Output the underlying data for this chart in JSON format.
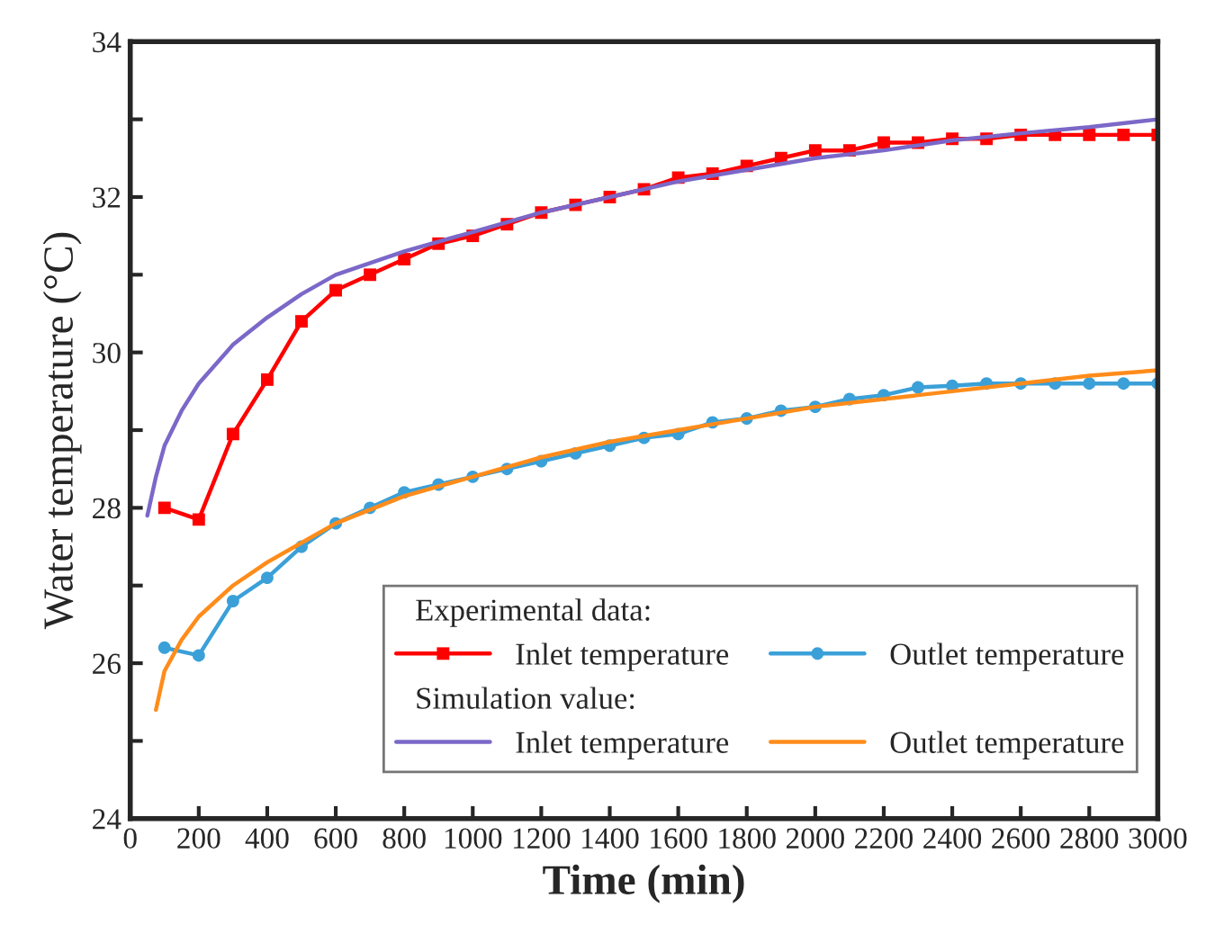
{
  "chart_data": {
    "type": "line",
    "xlabel": "Time (min)",
    "ylabel": "Water temperature (°C)",
    "xlim": [
      0,
      3000
    ],
    "xticks": [
      0,
      200,
      400,
      600,
      800,
      1000,
      1200,
      1400,
      1600,
      1800,
      2000,
      2200,
      2400,
      2600,
      2800,
      3000
    ],
    "ylim": [
      24,
      34
    ],
    "yticks": [
      24,
      {
        "value": 25,
        "label": null
      },
      26,
      {
        "value": 27,
        "label": null
      },
      28,
      {
        "value": 29,
        "label": null
      },
      30,
      {
        "value": 31,
        "label": null
      },
      32,
      {
        "value": 33,
        "label": null
      },
      34
    ],
    "grid": false,
    "legend": "bottom right",
    "line_style": "solid",
    "annotations": [
      "Experimental data:",
      "Simulation value:"
    ],
    "series": [
      {
        "name": "Inlet temperature",
        "color": "#ff0000",
        "marker": "square",
        "x": [
          100,
          200,
          300,
          400,
          500,
          600,
          700,
          800,
          900,
          1000,
          1100,
          1200,
          1300,
          1400,
          1500,
          1600,
          1700,
          1800,
          1900,
          2000,
          2100,
          2200,
          2300,
          2400,
          2500,
          2600,
          2700,
          2800,
          2900,
          3000
        ],
        "values": [
          28.0,
          27.85,
          28.95,
          29.65,
          30.4,
          30.8,
          31.0,
          31.2,
          31.4,
          31.5,
          31.65,
          31.8,
          31.9,
          32.0,
          32.1,
          32.25,
          32.3,
          32.4,
          32.5,
          32.6,
          32.6,
          32.7,
          32.7,
          32.75,
          32.75,
          32.8,
          32.8,
          32.8,
          32.8,
          32.8
        ]
      },
      {
        "name": "Outlet temperature",
        "color": "#3ba0d8",
        "marker": "circle",
        "x": [
          100,
          200,
          300,
          400,
          500,
          600,
          700,
          800,
          900,
          1000,
          1100,
          1200,
          1300,
          1400,
          1500,
          1600,
          1700,
          1800,
          1900,
          2000,
          2100,
          2200,
          2300,
          2400,
          2500,
          2600,
          2700,
          2800,
          2900,
          3000
        ],
        "values": [
          26.2,
          26.1,
          26.8,
          27.1,
          27.5,
          27.8,
          28.0,
          28.2,
          28.3,
          28.4,
          28.5,
          28.6,
          28.7,
          28.8,
          28.9,
          28.95,
          29.1,
          29.15,
          29.25,
          29.3,
          29.4,
          29.45,
          29.55,
          29.57,
          29.6,
          29.6,
          29.6,
          29.6,
          29.6,
          29.6
        ]
      },
      {
        "name": "Inlet temperature",
        "color": "#7b68c8",
        "marker": "none",
        "x": [
          50,
          75,
          100,
          150,
          200,
          300,
          400,
          500,
          600,
          800,
          1000,
          1200,
          1400,
          1600,
          1800,
          2000,
          2200,
          2400,
          2600,
          2800,
          3000
        ],
        "values": [
          27.9,
          28.4,
          28.8,
          29.25,
          29.6,
          30.1,
          30.45,
          30.75,
          31.0,
          31.3,
          31.55,
          31.8,
          32.0,
          32.2,
          32.35,
          32.5,
          32.6,
          32.73,
          32.82,
          32.9,
          33.0
        ]
      },
      {
        "name": "Outlet temperature",
        "color": "#ff8c1a",
        "marker": "none",
        "x": [
          75,
          100,
          150,
          200,
          300,
          400,
          500,
          600,
          800,
          1000,
          1200,
          1400,
          1600,
          1800,
          2000,
          2200,
          2400,
          2600,
          2800,
          3000
        ],
        "values": [
          25.4,
          25.9,
          26.3,
          26.6,
          27.0,
          27.3,
          27.55,
          27.8,
          28.15,
          28.4,
          28.65,
          28.85,
          29.0,
          29.15,
          29.3,
          29.4,
          29.5,
          29.6,
          29.7,
          29.77
        ]
      }
    ]
  }
}
